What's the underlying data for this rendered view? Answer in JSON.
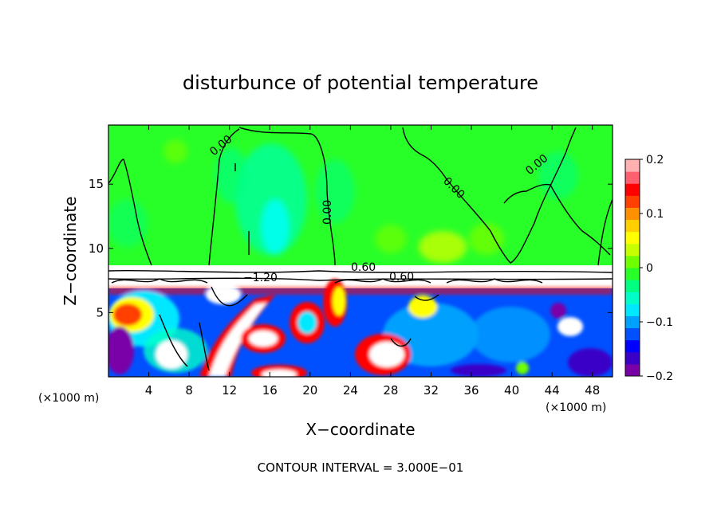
{
  "chart_data": {
    "type": "heatmap",
    "title": "disturbunce of potential temperature",
    "xlabel": "X−coordinate",
    "ylabel": "Z−coordinate",
    "x_unit": "(×1000 m)",
    "y_unit": "(×1000 m)",
    "xlim": [
      0,
      50
    ],
    "ylim": [
      0,
      19.6
    ],
    "x_ticks": [
      4,
      8,
      12,
      16,
      20,
      24,
      28,
      32,
      36,
      40,
      44,
      48
    ],
    "y_ticks": [
      5,
      10,
      15
    ],
    "colorbar": {
      "range": [
        -0.2,
        0.2
      ],
      "ticks": [
        "0.2",
        "0.1",
        "0",
        "−0.1",
        "−0.2"
      ],
      "colors": [
        "#7a00a8",
        "#3a00c8",
        "#0000ff",
        "#0050ff",
        "#00a0ff",
        "#00e8ff",
        "#00ffc8",
        "#00ff80",
        "#28ff28",
        "#70ff00",
        "#c8ff00",
        "#ffff00",
        "#ffd000",
        "#ff9000",
        "#ff4000",
        "#ff0000",
        "#ff6070",
        "#ffb0b0"
      ]
    },
    "contour_labels": [
      "0.00",
      "0.00",
      "0.00",
      "0.00",
      "−1.20",
      "0.60",
      "0.60"
    ],
    "footnote": "CONTOUR INTERVAL = 3.000E−01"
  }
}
